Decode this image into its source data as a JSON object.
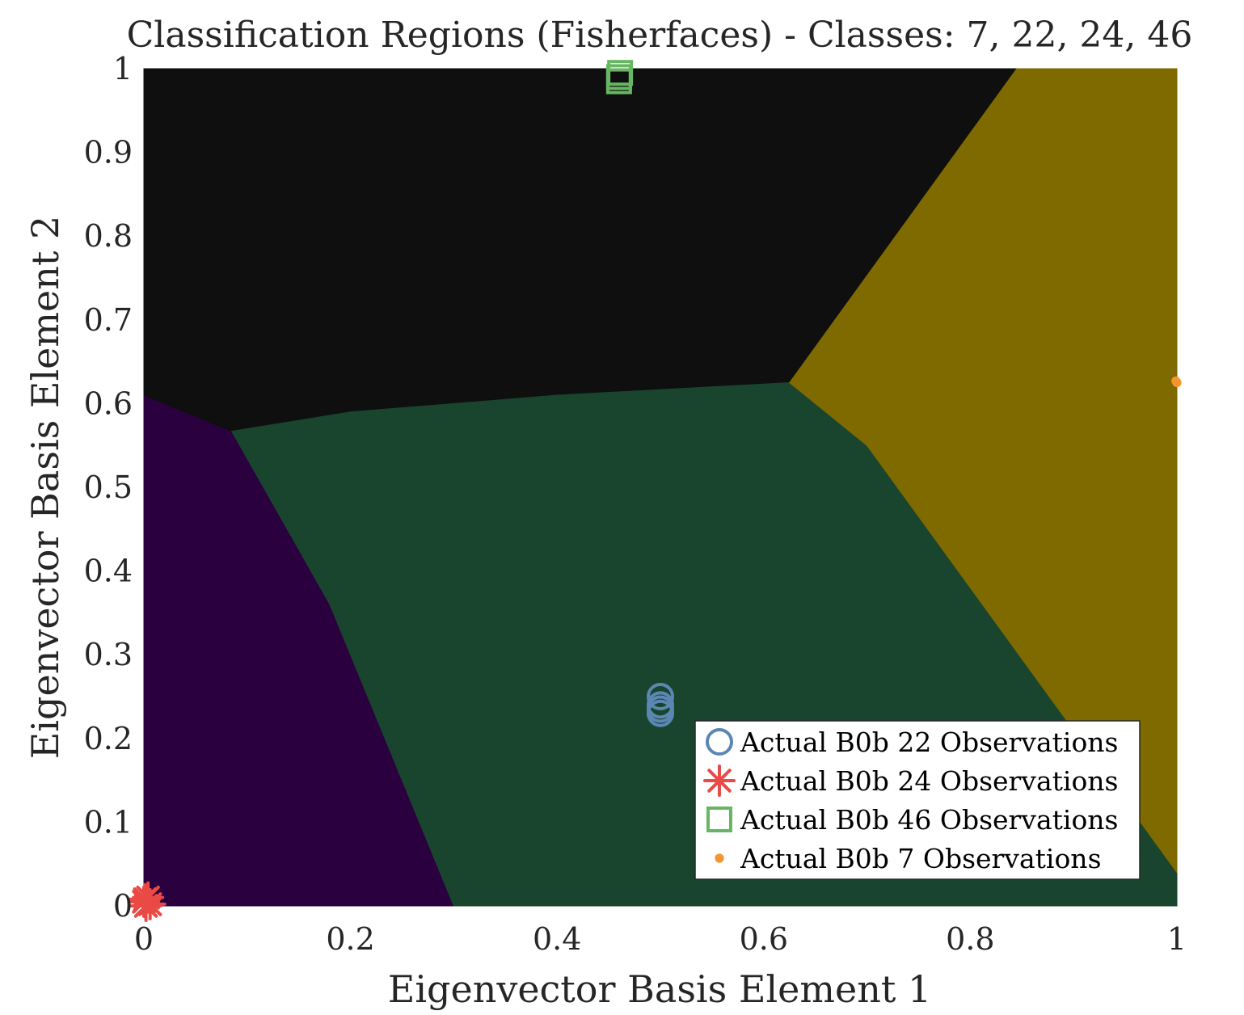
{
  "chart_data": {
    "type": "scatter",
    "title": "Classification Regions (Fisherfaces) - Classes: 7, 22, 24, 46",
    "xlabel": "Eigenvector Basis Element 1",
    "ylabel": "Eigenvector Basis Element 2",
    "xlim": [
      0,
      1
    ],
    "ylim": [
      0,
      1
    ],
    "xticks": [
      0,
      0.2,
      0.4,
      0.6,
      0.8,
      1
    ],
    "xtick_labels": [
      "0",
      "0.2",
      "0.4",
      "0.6",
      "0.8",
      "1"
    ],
    "yticks": [
      0,
      0.1,
      0.2,
      0.3,
      0.4,
      0.5,
      0.6,
      0.7,
      0.8,
      0.9,
      1
    ],
    "ytick_labels": [
      "0",
      "0.1",
      "0.2",
      "0.3",
      "0.4",
      "0.5",
      "0.6",
      "0.7",
      "0.8",
      "0.9",
      "1"
    ],
    "grid": false,
    "legend_position": "bottom-right",
    "regions": [
      {
        "class": "22",
        "color": "#2b003f",
        "polygon": [
          [
            0,
            0.61
          ],
          [
            0.085,
            0.567
          ],
          [
            0.18,
            0.36
          ],
          [
            0.3,
            0
          ],
          [
            0,
            0
          ]
        ]
      },
      {
        "class": "46",
        "color": "#0f0f0f",
        "polygon": [
          [
            0,
            1
          ],
          [
            0.845,
            1
          ],
          [
            0.625,
            0.625
          ],
          [
            0.4,
            0.61
          ],
          [
            0.2,
            0.59
          ],
          [
            0.085,
            0.567
          ],
          [
            0,
            0.61
          ]
        ]
      },
      {
        "class": "24",
        "color": "#19452e",
        "polygon": [
          [
            0.085,
            0.567
          ],
          [
            0.2,
            0.59
          ],
          [
            0.4,
            0.61
          ],
          [
            0.625,
            0.625
          ],
          [
            0.7,
            0.55
          ],
          [
            1,
            0.04
          ],
          [
            1,
            0
          ],
          [
            0.3,
            0
          ],
          [
            0.18,
            0.36
          ]
        ]
      },
      {
        "class": "7",
        "color": "#7f6a00",
        "polygon": [
          [
            0.845,
            1
          ],
          [
            1,
            1
          ],
          [
            1,
            0.04
          ],
          [
            0.7,
            0.55
          ],
          [
            0.625,
            0.625
          ]
        ]
      }
    ],
    "series": [
      {
        "name": "Actual B0b 22 Observations",
        "marker": "circle",
        "color": "#5b87b2",
        "points": [
          [
            0.5,
            0.25
          ],
          [
            0.5,
            0.24
          ],
          [
            0.5,
            0.23
          ],
          [
            0.5,
            0.235
          ]
        ]
      },
      {
        "name": "Actual B0b 24 Observations",
        "marker": "asterisk",
        "color": "#e94a45",
        "points": [
          [
            0,
            0.005
          ],
          [
            0.002,
            0.0
          ],
          [
            0.004,
            0.01
          ],
          [
            0.006,
            0.002
          ],
          [
            0.001,
            0.008
          ]
        ]
      },
      {
        "name": "Actual B0b 46 Observations",
        "marker": "square",
        "color": "#67b762",
        "points": [
          [
            0.46,
            0.99
          ],
          [
            0.46,
            0.985
          ],
          [
            0.461,
            0.995
          ]
        ]
      },
      {
        "name": "Actual B0b 7 Observations",
        "marker": "dot",
        "color": "#f3962f",
        "points": [
          [
            1.0,
            0.625
          ],
          [
            0.999,
            0.627
          ]
        ]
      }
    ]
  }
}
